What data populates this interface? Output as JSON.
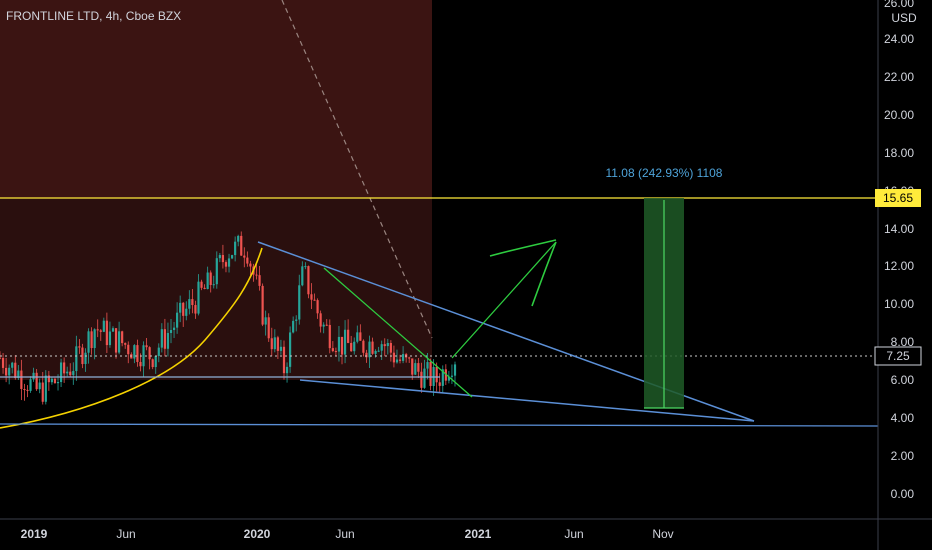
{
  "symbol_title": "FRONTLINE LTD, 4h, Cboe BZX",
  "currency": "USD",
  "price_tags": {
    "level": "15.65",
    "last": "7.25"
  },
  "measure_label": "11.08 (242.93%) 1108",
  "colors": {
    "background": "#000000",
    "shade": "#3a1312",
    "level_line": "#ffeb3b",
    "trend_line": "#5b8fd6",
    "green_draw": "#2ecc40",
    "measure_fill": "#1e5b27",
    "measure_text": "#4ea3d9",
    "up_candle": "#26a69a",
    "down_candle": "#ef5350"
  },
  "chart_data": {
    "type": "candlestick",
    "title": "FRONTLINE LTD, 4h, Cboe BZX",
    "y_axis": {
      "unit": "USD",
      "ticks": [
        "0.00",
        "2.00",
        "4.00",
        "6.00",
        "8.00",
        "10.00",
        "12.00",
        "14.00",
        "16.00",
        "18.00",
        "20.00",
        "22.00",
        "24.00",
        "26.00"
      ],
      "range": [
        -1.5,
        26.5
      ]
    },
    "x_axis": {
      "ticks": [
        "2019",
        "Jun",
        "2020",
        "Jun",
        "2021",
        "Jun",
        "Nov"
      ]
    },
    "price_path": [
      [
        "2018-12",
        7.2
      ],
      [
        "2019-01",
        6.4
      ],
      [
        "2019-02",
        5.4
      ],
      [
        "2019-03",
        6.0
      ],
      [
        "2019-04",
        7.0
      ],
      [
        "2019-05",
        8.8
      ],
      [
        "2019-06",
        8.2
      ],
      [
        "2019-07",
        7.7
      ],
      [
        "2019-08",
        7.3
      ],
      [
        "2019-09",
        8.7
      ],
      [
        "2019-10",
        9.9
      ],
      [
        "2019-11",
        11.0
      ],
      [
        "2019-12",
        12.8
      ],
      [
        "2020-01",
        13.1
      ],
      [
        "2020-02",
        9.0
      ],
      [
        "2020-03",
        6.6
      ],
      [
        "2020-04",
        11.7
      ],
      [
        "2020-05",
        8.9
      ],
      [
        "2020-06",
        7.9
      ],
      [
        "2020-07",
        7.8
      ],
      [
        "2020-08",
        8.2
      ],
      [
        "2020-09",
        7.1
      ],
      [
        "2020-10",
        6.5
      ],
      [
        "2020-11",
        6.0
      ],
      [
        "2020-12",
        7.25
      ]
    ],
    "horizontal_levels": [
      15.65,
      7.25,
      6.2,
      3.6
    ],
    "measure": {
      "from": 4.57,
      "to": 15.65,
      "change": 11.08,
      "percent": 242.93
    }
  }
}
